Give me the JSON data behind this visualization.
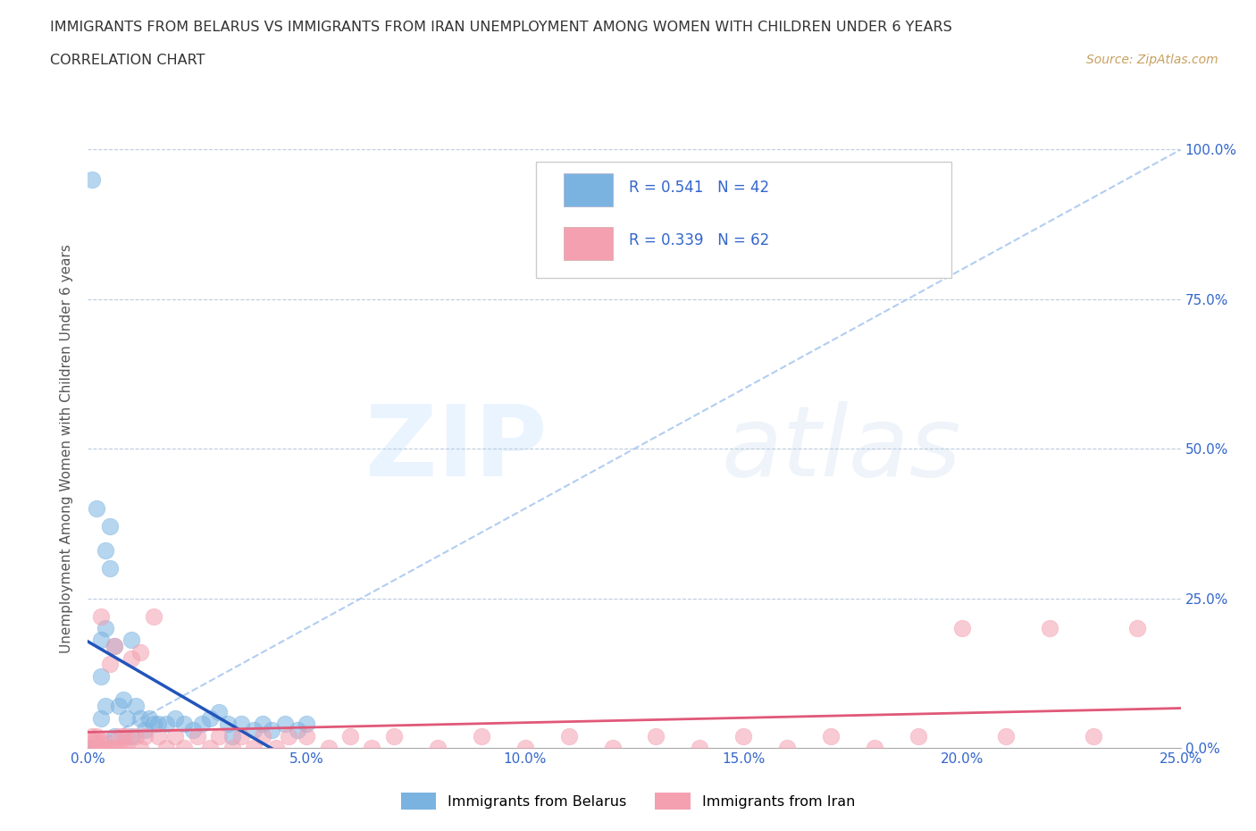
{
  "title_line1": "IMMIGRANTS FROM BELARUS VS IMMIGRANTS FROM IRAN UNEMPLOYMENT AMONG WOMEN WITH CHILDREN UNDER 6 YEARS",
  "title_line2": "CORRELATION CHART",
  "source": "Source: ZipAtlas.com",
  "ylabel": "Unemployment Among Women with Children Under 6 years",
  "xlim": [
    0.0,
    0.25
  ],
  "ylim": [
    0.0,
    1.0
  ],
  "xticks": [
    0.0,
    0.05,
    0.1,
    0.15,
    0.2,
    0.25
  ],
  "yticks": [
    0.0,
    0.25,
    0.5,
    0.75,
    1.0
  ],
  "xtick_labels": [
    "0.0%",
    "5.0%",
    "10.0%",
    "15.0%",
    "20.0%",
    "25.0%"
  ],
  "ytick_labels_right": [
    "0.0%",
    "25.0%",
    "50.0%",
    "75.0%",
    "100.0%"
  ],
  "belarus_color": "#7ab3e0",
  "iran_color": "#f4a0b0",
  "belarus_line_color": "#2255bb",
  "iran_line_color": "#e05878",
  "diag_line_color": "#aac8f0",
  "belarus_R": 0.541,
  "belarus_N": 42,
  "iran_R": 0.339,
  "iran_N": 62,
  "legend_label_belarus": "Immigrants from Belarus",
  "legend_label_iran": "Immigrants from Iran",
  "text_color": "#3366cc",
  "title_color": "#333333",
  "belarus_x": [
    0.001,
    0.001,
    0.002,
    0.002,
    0.003,
    0.003,
    0.003,
    0.004,
    0.004,
    0.004,
    0.005,
    0.005,
    0.006,
    0.006,
    0.007,
    0.008,
    0.009,
    0.01,
    0.01,
    0.011,
    0.012,
    0.013,
    0.014,
    0.015,
    0.016,
    0.018,
    0.02,
    0.022,
    0.024,
    0.026,
    0.028,
    0.03,
    0.032,
    0.033,
    0.035,
    0.038,
    0.04,
    0.042,
    0.045,
    0.048,
    0.05,
    0.002
  ],
  "belarus_y": [
    0.95,
    0.0,
    0.0,
    0.0,
    0.18,
    0.12,
    0.05,
    0.33,
    0.2,
    0.07,
    0.37,
    0.3,
    0.17,
    0.02,
    0.07,
    0.08,
    0.05,
    0.18,
    0.02,
    0.07,
    0.05,
    0.03,
    0.05,
    0.04,
    0.04,
    0.04,
    0.05,
    0.04,
    0.03,
    0.04,
    0.05,
    0.06,
    0.04,
    0.02,
    0.04,
    0.03,
    0.04,
    0.03,
    0.04,
    0.03,
    0.04,
    0.4
  ],
  "iran_x": [
    0.001,
    0.001,
    0.001,
    0.002,
    0.002,
    0.002,
    0.003,
    0.003,
    0.003,
    0.004,
    0.004,
    0.005,
    0.005,
    0.006,
    0.006,
    0.007,
    0.007,
    0.008,
    0.008,
    0.009,
    0.009,
    0.01,
    0.011,
    0.012,
    0.012,
    0.013,
    0.015,
    0.016,
    0.018,
    0.02,
    0.022,
    0.025,
    0.028,
    0.03,
    0.033,
    0.035,
    0.038,
    0.04,
    0.043,
    0.046,
    0.05,
    0.055,
    0.06,
    0.065,
    0.07,
    0.08,
    0.09,
    0.1,
    0.11,
    0.12,
    0.13,
    0.14,
    0.15,
    0.16,
    0.17,
    0.18,
    0.19,
    0.2,
    0.21,
    0.22,
    0.23,
    0.24
  ],
  "iran_y": [
    0.0,
    0.01,
    0.02,
    0.0,
    0.01,
    0.02,
    0.0,
    0.01,
    0.22,
    0.0,
    0.01,
    0.0,
    0.14,
    0.0,
    0.17,
    0.0,
    0.02,
    0.0,
    0.02,
    0.0,
    0.02,
    0.15,
    0.02,
    0.0,
    0.16,
    0.02,
    0.22,
    0.02,
    0.0,
    0.02,
    0.0,
    0.02,
    0.0,
    0.02,
    0.0,
    0.02,
    0.0,
    0.02,
    0.0,
    0.02,
    0.02,
    0.0,
    0.02,
    0.0,
    0.02,
    0.0,
    0.02,
    0.0,
    0.02,
    0.0,
    0.02,
    0.0,
    0.02,
    0.0,
    0.02,
    0.0,
    0.02,
    0.2,
    0.02,
    0.2,
    0.02,
    0.2
  ]
}
